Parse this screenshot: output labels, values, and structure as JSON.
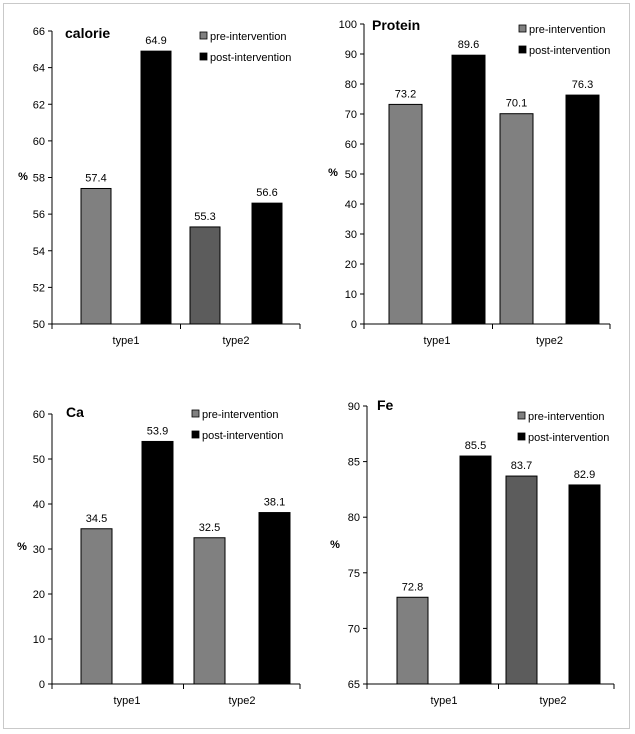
{
  "chart_data": [
    {
      "type": "bar",
      "title": "calorie",
      "ylabel": "%",
      "ylim": [
        50,
        66
      ],
      "yticks": [
        50,
        52,
        54,
        56,
        58,
        60,
        62,
        64,
        66
      ],
      "categories": [
        "type1",
        "type2"
      ],
      "series": [
        {
          "name": "pre-intervention",
          "values": [
            57.4,
            55.3
          ],
          "colors": [
            "#808080",
            "#5c5c5c"
          ]
        },
        {
          "name": "post-intervention",
          "values": [
            64.9,
            56.6
          ],
          "colors": [
            "#000000",
            "#000000"
          ]
        }
      ],
      "legend": "top-right",
      "grid": false
    },
    {
      "type": "bar",
      "title": "Protein",
      "ylabel": "%",
      "ylim": [
        0,
        100
      ],
      "yticks": [
        0,
        10,
        20,
        30,
        40,
        50,
        60,
        70,
        80,
        90,
        100
      ],
      "categories": [
        "type1",
        "type2"
      ],
      "series": [
        {
          "name": "pre-intervention",
          "values": [
            73.2,
            70.1
          ],
          "colors": [
            "#808080",
            "#808080"
          ]
        },
        {
          "name": "post-intervention",
          "values": [
            89.6,
            76.3
          ],
          "colors": [
            "#000000",
            "#000000"
          ]
        }
      ],
      "legend": "top-right",
      "grid": false
    },
    {
      "type": "bar",
      "title": "Ca",
      "ylabel": "%",
      "ylim": [
        0,
        60
      ],
      "yticks": [
        0,
        10,
        20,
        30,
        40,
        50,
        60
      ],
      "categories": [
        "type1",
        "type2"
      ],
      "series": [
        {
          "name": "pre-intervention",
          "values": [
            34.5,
            32.5
          ],
          "colors": [
            "#808080",
            "#808080"
          ]
        },
        {
          "name": "post-intervention",
          "values": [
            53.9,
            38.1
          ],
          "colors": [
            "#000000",
            "#000000"
          ]
        }
      ],
      "legend": "top-right",
      "grid": false
    },
    {
      "type": "bar",
      "title": "Fe",
      "ylabel": "%",
      "ylim": [
        65,
        90
      ],
      "yticks": [
        65,
        70,
        75,
        80,
        85,
        90
      ],
      "categories": [
        "type1",
        "type2"
      ],
      "series": [
        {
          "name": "pre-intervention",
          "values": [
            72.8,
            83.7
          ],
          "colors": [
            "#808080",
            "#5c5c5c"
          ]
        },
        {
          "name": "post-intervention",
          "values": [
            85.5,
            82.9
          ],
          "colors": [
            "#000000",
            "#000000"
          ]
        }
      ],
      "legend": "top-right",
      "grid": false
    }
  ]
}
